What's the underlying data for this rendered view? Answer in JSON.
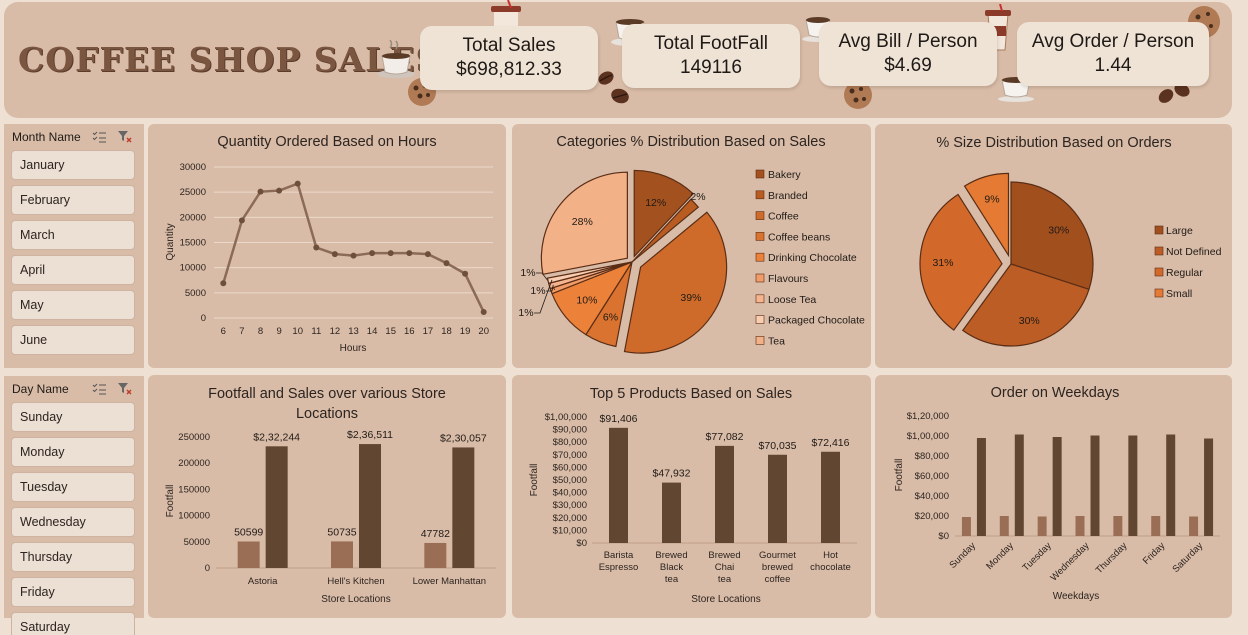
{
  "header": {
    "title": "COFFEE SHOP SALES",
    "kpis": [
      {
        "label": "Total Sales",
        "value": "$698,812.33"
      },
      {
        "label": "Total FootFall",
        "value": "149116"
      },
      {
        "label": "Avg Bill / Person",
        "value": "$4.69"
      },
      {
        "label": "Avg Order / Person",
        "value": "1.44"
      }
    ]
  },
  "month_slicer": {
    "title": "Month Name",
    "items": [
      "January",
      "February",
      "March",
      "April",
      "May",
      "June"
    ]
  },
  "day_slicer": {
    "title": "Day Name",
    "items": [
      "Sunday",
      "Monday",
      "Tuesday",
      "Wednesday",
      "Thursday",
      "Friday",
      "Saturday"
    ]
  },
  "colors": {
    "banner": "#d9bca7",
    "panel": "#d9bca7",
    "dark_bar": "#614632",
    "light_bar": "#9a6e54",
    "line": "#8b6b57"
  },
  "chart_data": [
    {
      "type": "line",
      "title": "Quantity Ordered Based on Hours",
      "xlabel": "Hours",
      "ylabel": "Quantity",
      "x": [
        6,
        7,
        8,
        9,
        10,
        11,
        12,
        13,
        14,
        15,
        16,
        17,
        18,
        19,
        20
      ],
      "values": [
        6900,
        19400,
        25100,
        25300,
        26700,
        14000,
        12700,
        12400,
        12900,
        12900,
        12900,
        12700,
        10900,
        8800,
        1200
      ],
      "ylim": [
        0,
        30000
      ],
      "yticks": [
        "0",
        "5000",
        "10000",
        "15000",
        "20000",
        "25000",
        "30000"
      ],
      "grid": true
    },
    {
      "type": "pie",
      "title": "Categories % Distribution Based on Sales",
      "categories": [
        "Bakery",
        "Branded",
        "Coffee",
        "Coffee beans",
        "Drinking Chocolate",
        "Flavours",
        "Loose Tea",
        "Packaged Chocolate",
        "Tea"
      ],
      "values": [
        12,
        2,
        39,
        6,
        10,
        1,
        1,
        1,
        28
      ],
      "labels": [
        "12%",
        "2%",
        "39%",
        "6%",
        "10%",
        "1%",
        "1%",
        "1%",
        "28%"
      ],
      "colors": [
        "#a3521f",
        "#b85c22",
        "#cf6b2a",
        "#d9732f",
        "#ec8239",
        "#f19c68",
        "#f5b48e",
        "#f8cdb0",
        "#f3b187"
      ],
      "legend": "right"
    },
    {
      "type": "pie",
      "title": "% Size Distribution Based on Orders",
      "categories": [
        "Large",
        "Not Defined",
        "Regular",
        "Small"
      ],
      "values": [
        30,
        30,
        31,
        9
      ],
      "labels": [
        "30%",
        "30%",
        "31%",
        "9%"
      ],
      "colors": [
        "#a24f1e",
        "#bb5d24",
        "#d2692a",
        "#e47a33"
      ],
      "legend": "right"
    },
    {
      "type": "bar",
      "title": "Footfall and Sales over various Store Locations",
      "xlabel": "Store Locations",
      "ylabel": "Footfall",
      "categories": [
        "Astoria",
        "Hell's Kitchen",
        "Lower Manhattan"
      ],
      "series": [
        {
          "values": [
            50599,
            50735,
            47782
          ],
          "labels": [
            "50599",
            "50735",
            "47782"
          ]
        },
        {
          "values": [
            232244,
            236511,
            230057
          ],
          "labels": [
            "$2,32,244",
            "$2,36,511",
            "$2,30,057"
          ]
        }
      ],
      "ylim": [
        0,
        250000
      ],
      "yticks": [
        "0",
        "50000",
        "100000",
        "150000",
        "200000",
        "250000"
      ]
    },
    {
      "type": "bar",
      "title": "Top 5 Products Based on Sales",
      "xlabel": "Store Locations",
      "ylabel": "Footfall",
      "categories": [
        "Barista Espresso",
        "Brewed Black tea",
        "Brewed Chai tea",
        "Gourmet brewed coffee",
        "Hot chocolate"
      ],
      "values": [
        91406,
        47932,
        77082,
        70035,
        72416
      ],
      "labels": [
        "$91,406",
        "$47,932",
        "$77,082",
        "$70,035",
        "$72,416"
      ],
      "ylim": [
        0,
        100000
      ],
      "yticks": [
        "$0",
        "$10,000",
        "$20,000",
        "$30,000",
        "$40,000",
        "$50,000",
        "$60,000",
        "$70,000",
        "$80,000",
        "$90,000",
        "$1,00,000"
      ]
    },
    {
      "type": "bar",
      "title": "Order on Weekdays",
      "xlabel": "Weekdays",
      "ylabel": "Footfall",
      "categories": [
        "Sunday",
        "Monday",
        "Tuesday",
        "Wednesday",
        "Thursday",
        "Friday",
        "Saturday"
      ],
      "series": [
        {
          "values": [
            19000,
            20000,
            19500,
            20000,
            20000,
            20000,
            19500
          ]
        },
        {
          "values": [
            98000,
            101500,
            99000,
            100500,
            100500,
            101500,
            97500
          ]
        }
      ],
      "ylim": [
        0,
        120000
      ],
      "yticks": [
        "$0",
        "$20,000",
        "$40,000",
        "$60,000",
        "$80,000",
        "$1,00,000",
        "$1,20,000"
      ]
    }
  ]
}
